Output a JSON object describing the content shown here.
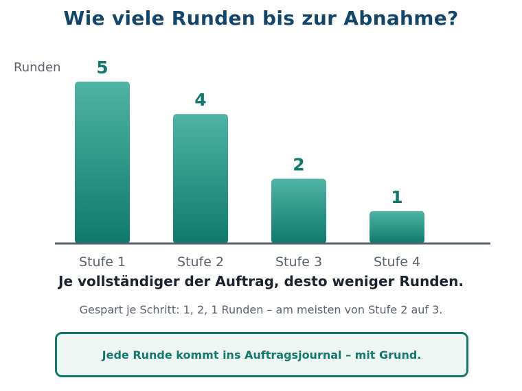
{
  "title": "Wie viele Runden bis zur Abnahme?",
  "chart_data": {
    "type": "bar",
    "categories": [
      "Stufe 1",
      "Stufe 2",
      "Stufe 3",
      "Stufe 4"
    ],
    "values": [
      5,
      4,
      2,
      1
    ],
    "ylabel": "Runden",
    "ylim": [
      0,
      5
    ],
    "grid": false,
    "data_labels": true,
    "bar_color_top": "#4fb3a5",
    "bar_color_bottom": "#0f7a6c",
    "label_color": "#0f7a6c",
    "axis_color": "#5a6070"
  },
  "conclusion": "Je vollständiger der Auftrag, desto weniger Runden.",
  "savings_note": "Gespart je Schritt: 1, 2, 1 Runden – am meisten von Stufe 2 auf 3.",
  "callout": "Jede Runde kommt ins Auftragsjournal – mit Grund."
}
